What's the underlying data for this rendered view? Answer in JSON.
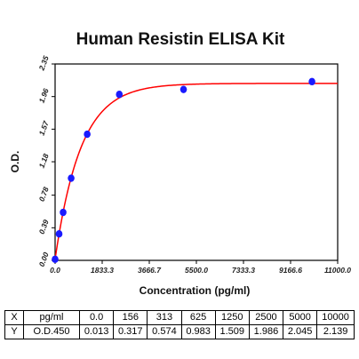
{
  "chart_data": {
    "type": "scatter",
    "title": "Human Resistin ELISA Kit",
    "xlabel": "Concentration (pg/ml)",
    "ylabel": "O.D.",
    "xlim": [
      0,
      11000
    ],
    "ylim": [
      0,
      2.35
    ],
    "x_ticks": [
      "0.0",
      "1833.3",
      "3666.7",
      "5500.0",
      "7333.3",
      "9166.6",
      "11000.0"
    ],
    "y_ticks": [
      "0.00",
      "0.39",
      "0.78",
      "1.18",
      "1.57",
      "1.96",
      "2.35"
    ],
    "grid": false,
    "series": [
      {
        "values": [
          [
            0,
            0.013
          ],
          [
            156,
            0.317
          ],
          [
            313,
            0.574
          ],
          [
            625,
            0.983
          ],
          [
            1250,
            1.509
          ],
          [
            2500,
            1.986
          ],
          [
            5000,
            2.045
          ],
          [
            10000,
            2.139
          ]
        ]
      }
    ],
    "fit_curve": {
      "color": "#ff0000"
    },
    "point_color": "#1a1aff"
  },
  "table": {
    "rows": [
      [
        "X",
        "pg/ml",
        "0.0",
        "156",
        "313",
        "625",
        "1250",
        "2500",
        "5000",
        "10000"
      ],
      [
        "Y",
        "O.D.450",
        "0.013",
        "0.317",
        "0.574",
        "0.983",
        "1.509",
        "1.986",
        "2.045",
        "2.139"
      ]
    ]
  }
}
